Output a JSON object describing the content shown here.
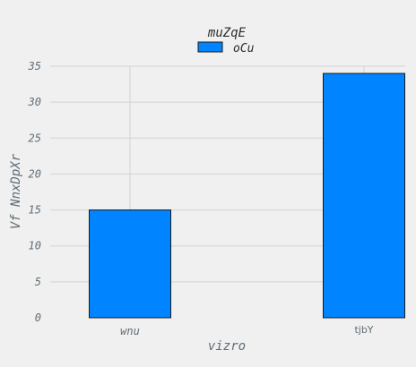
{
  "chart_data": {
    "type": "bar",
    "title": "",
    "xlabel": "vizro",
    "ylabel": "Vf NnxDpXr",
    "categories": [
      "wnu",
      "tjbY"
    ],
    "series": [
      {
        "name": "oCu",
        "values": [
          15,
          34
        ]
      }
    ],
    "ylim": [
      0,
      35
    ],
    "yticks": [
      0,
      5,
      10,
      15,
      20,
      25,
      30,
      35
    ],
    "grid": true,
    "legend": {
      "title": "muZqE",
      "placement": "top-center"
    },
    "colors": {
      "bar": "#0084ff",
      "background": "#f0f0f0",
      "grid": "#d2d2d2"
    }
  }
}
